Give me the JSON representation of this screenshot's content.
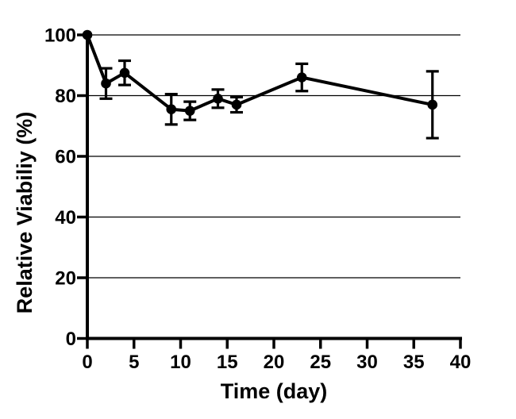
{
  "figure": {
    "background": "#ffffff"
  },
  "chart_data": {
    "type": "line",
    "title": "",
    "xlabel": "Time (day)",
    "ylabel": "Relative Viabiliy (%)",
    "xlim": [
      0,
      40
    ],
    "ylim": [
      0,
      100
    ],
    "xticks": [
      0,
      5,
      10,
      15,
      20,
      25,
      30,
      35,
      40
    ],
    "yticks": [
      0,
      20,
      40,
      60,
      80,
      100
    ],
    "grid": {
      "horizontal_at": [
        20,
        40,
        60,
        80,
        100
      ],
      "vertical": false
    },
    "legend": false,
    "colors": {
      "series": "#000000",
      "axis": "#000000",
      "grid": "#000000",
      "background": "#ffffff"
    },
    "series": [
      {
        "name": "Relative viability",
        "marker": "filled-circle",
        "x": [
          0,
          2,
          4,
          9,
          11,
          14,
          16,
          23,
          37
        ],
        "y": [
          100,
          84,
          87.5,
          75.5,
          75,
          79,
          77,
          86,
          77
        ],
        "y_err": [
          0,
          5,
          4,
          5,
          3,
          3,
          2.5,
          4.5,
          11
        ]
      }
    ]
  }
}
